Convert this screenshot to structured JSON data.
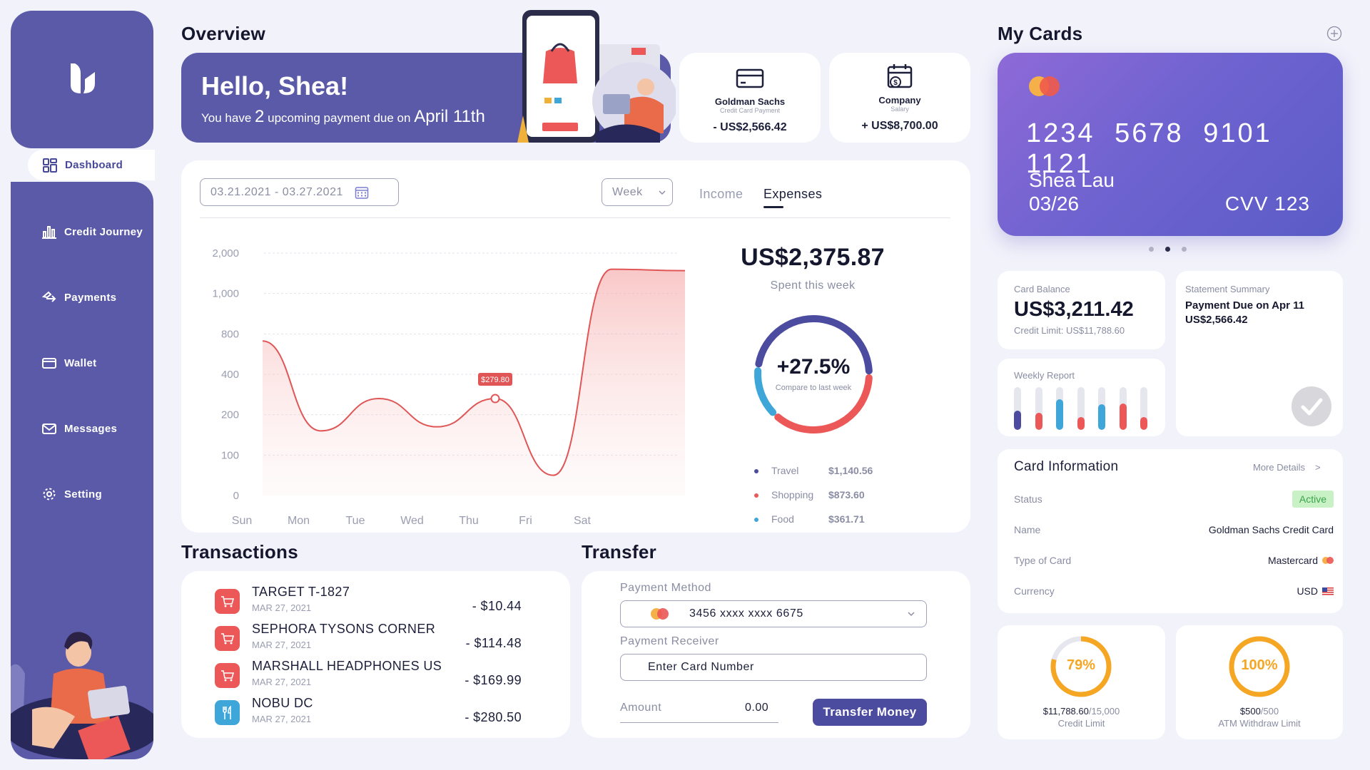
{
  "sidebar": {
    "items": [
      {
        "label": "Dashboard",
        "icon": "dashboard-icon",
        "active": true
      },
      {
        "label": "Credit Journey",
        "icon": "bar-chart-icon"
      },
      {
        "label": "Payments",
        "icon": "payments-icon"
      },
      {
        "label": "Wallet",
        "icon": "wallet-icon"
      },
      {
        "label": "Messages",
        "icon": "mail-icon"
      },
      {
        "label": "Setting",
        "icon": "gear-icon"
      }
    ]
  },
  "overview": {
    "title": "Overview",
    "greeting": "Hello, Shea!",
    "message_prefix": "You have",
    "payment_count": "2",
    "message_mid": "upcoming payment due on",
    "due_date": "April 11th"
  },
  "mini_cards": [
    {
      "title": "Goldman Sachs",
      "subtitle": "Credit Card Payment",
      "amount": "- US$2,566.42",
      "icon": "credit-card-icon"
    },
    {
      "title": "Company",
      "subtitle": "Salary",
      "amount": "+ US$8,700.00",
      "icon": "calendar-dollar-icon"
    }
  ],
  "chart_panel": {
    "date_range": "03.21.2021 - 03.27.2021",
    "period": "Week",
    "tabs": [
      "Income",
      "Expenses"
    ],
    "active_tab": "Expenses",
    "total": "US$2,375.87",
    "total_caption": "Spent this week",
    "change": "+27.5%",
    "change_caption": "Compare to last week",
    "legend": [
      {
        "name": "Travel",
        "value": "$1,140.56",
        "color": "#4b4ba0"
      },
      {
        "name": "Shopping",
        "value": "$873.60",
        "color": "#ec5757"
      },
      {
        "name": "Food",
        "value": "$361.71",
        "color": "#3fa6d9"
      }
    ]
  },
  "chart_data": {
    "type": "area",
    "categories": [
      "Sun",
      "Mon",
      "Tue",
      "Wed",
      "Thu",
      "Fri",
      "Sat"
    ],
    "y_ticks": [
      "0",
      "100",
      "200",
      "400",
      "800",
      "1,000",
      "2,000"
    ],
    "values": [
      730,
      160,
      280,
      170,
      279.8,
      50,
      1600
    ],
    "highlight": {
      "category": "Thu",
      "label": "$279.80"
    },
    "line_color": "#e05656"
  },
  "donut": {
    "segments": [
      {
        "name": "Travel",
        "fraction": 0.48,
        "color": "#4b4ba0"
      },
      {
        "name": "Shopping",
        "fraction": 0.37,
        "color": "#ec5757"
      },
      {
        "name": "Food",
        "fraction": 0.15,
        "color": "#3fa6d9"
      }
    ]
  },
  "transactions": {
    "title": "Transactions",
    "items": [
      {
        "name": "TARGET T-1827",
        "date": "MAR 27, 2021",
        "amount": "- $10.44",
        "icon": "shopping-cart-icon",
        "color": "#ec5757"
      },
      {
        "name": "SEPHORA TYSONS CORNER",
        "date": "MAR 27, 2021",
        "amount": "- $114.48",
        "icon": "shopping-cart-icon",
        "color": "#ec5757"
      },
      {
        "name": "MARSHALL HEADPHONES US",
        "date": "MAR 27, 2021",
        "amount": "- $169.99",
        "icon": "shopping-cart-icon",
        "color": "#ec5757"
      },
      {
        "name": "NOBU DC",
        "date": "MAR 27, 2021",
        "amount": "- $280.50",
        "icon": "restaurant-icon",
        "color": "#3fa6d9"
      }
    ]
  },
  "transfer": {
    "title": "Transfer",
    "method_label": "Payment Method",
    "method_value": "3456 xxxx xxxx 6675",
    "receiver_label": "Payment Receiver",
    "receiver_value": "Enter Card Number",
    "amount_label": "Amount",
    "amount_value": "0.00",
    "button": "Transfer Money"
  },
  "my_cards": {
    "title": "My Cards",
    "card": {
      "number_groups": [
        "1234",
        "5678",
        "9101",
        "1121"
      ],
      "holder": "Shea Lau",
      "expiry": "03/26",
      "cvv_label": "CVV",
      "cvv": "123"
    },
    "carousel": {
      "count": 3,
      "active": 1
    }
  },
  "balance": {
    "label": "Card Balance",
    "value": "US$3,211.42",
    "limit": "Credit Limit: US$11,788.60"
  },
  "statement": {
    "label": "Statement Summary",
    "due": "Payment Due on Apr 11",
    "amount": "US$2,566.42"
  },
  "weekly_report": {
    "label": "Weekly Report",
    "bars": [
      {
        "fill": 0.45,
        "color": "#4b4ba0"
      },
      {
        "fill": 0.4,
        "color": "#ec5757"
      },
      {
        "fill": 0.72,
        "color": "#3fa6d9"
      },
      {
        "fill": 0.3,
        "color": "#ec5757"
      },
      {
        "fill": 0.6,
        "color": "#3fa6d9"
      },
      {
        "fill": 0.62,
        "color": "#ec5757"
      },
      {
        "fill": 0.3,
        "color": "#ec5757"
      }
    ]
  },
  "card_info": {
    "title": "Card Information",
    "more": "More Details",
    "more_arrow": ">",
    "rows": [
      {
        "key": "Status",
        "value": "Active"
      },
      {
        "key": "Name",
        "value": "Goldman Sachs Credit Card"
      },
      {
        "key": "Type of Card",
        "value": "Mastercard"
      },
      {
        "key": "Currency",
        "value": "USD"
      }
    ]
  },
  "limits": [
    {
      "percent": "79%",
      "fraction": 0.79,
      "used": "$11,788.60",
      "total": "/15,000",
      "label": "Credit Limit"
    },
    {
      "percent": "100%",
      "fraction": 1.0,
      "used": "$500",
      "total": "/500",
      "label": "ATM Withdraw Limit"
    }
  ]
}
